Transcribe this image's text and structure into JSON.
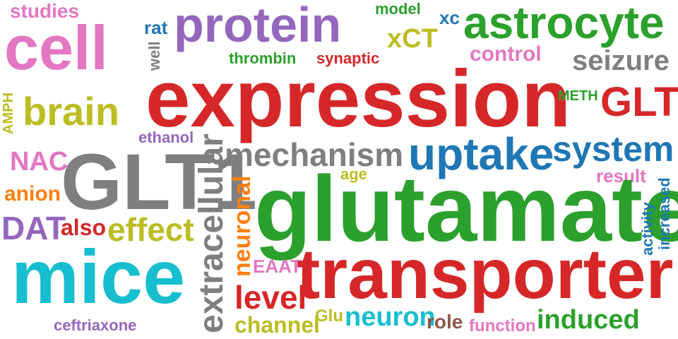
{
  "word_cloud": {
    "colors": {
      "pink": "#e377c2",
      "purple": "#9467bd",
      "red": "#d62728",
      "green": "#2ca02c",
      "olive": "#bcbd22",
      "gray": "#7f7f7f",
      "blue": "#1f77b4",
      "cyan": "#17becf",
      "orange": "#ff7f0e",
      "brown": "#8c564b"
    },
    "words": {
      "studies": "studies",
      "cell": "cell",
      "protein": "protein",
      "rat": "rat",
      "model": "model",
      "xc": "xc",
      "astrocyte": "astrocyte",
      "xct": "xCT",
      "well": "well",
      "thrombin": "thrombin",
      "synaptic": "synaptic",
      "control": "control",
      "seizure": "seizure",
      "expression": "expression",
      "brain": "brain",
      "amph": "AMPH",
      "meth": "METH",
      "glt": "GLT",
      "ethanol": "ethanol",
      "nac": "NAC",
      "glt1": "GLT1",
      "extracellular": "extracellular",
      "mechanism": "mechanism",
      "uptake": "uptake",
      "system": "system",
      "age": "age",
      "result": "result",
      "anion": "anion",
      "neuronal": "neuronal",
      "glutamate": "glutamate",
      "increased": "increased",
      "activity": "activity",
      "dat": "DAT",
      "also": "also",
      "effect": "effect",
      "eaat": "EAAT",
      "mice": "mice",
      "transporter": "transporter",
      "level": "level",
      "glu": "Glu",
      "neuron": "neuron",
      "channel": "channel",
      "role": "role",
      "function": "function",
      "induced": "induced",
      "ceftriaxone": "ceftriaxone"
    }
  }
}
